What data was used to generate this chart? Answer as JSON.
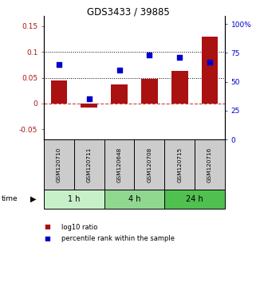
{
  "title": "GDS3433 / 39885",
  "categories": [
    "GSM120710",
    "GSM120711",
    "GSM120648",
    "GSM120708",
    "GSM120715",
    "GSM120716"
  ],
  "log10_ratio": [
    0.045,
    -0.008,
    0.037,
    0.047,
    0.063,
    0.13
  ],
  "percentile_rank": [
    65,
    35,
    60,
    73,
    71,
    67
  ],
  "groups": [
    {
      "label": "1 h",
      "indices": [
        0,
        1
      ],
      "color": "#c8f0c8"
    },
    {
      "label": "4 h",
      "indices": [
        2,
        3
      ],
      "color": "#90d890"
    },
    {
      "label": "24 h",
      "indices": [
        4,
        5
      ],
      "color": "#50c050"
    }
  ],
  "bar_color": "#aa1111",
  "dot_color": "#0000cc",
  "ylim_left": [
    -0.07,
    0.17
  ],
  "ylim_right": [
    0,
    107
  ],
  "yticks_left": [
    -0.05,
    0.0,
    0.05,
    0.1,
    0.15
  ],
  "yticks_right": [
    0,
    25,
    50,
    75,
    100
  ],
  "ytick_labels_right": [
    "0",
    "25",
    "50",
    "75",
    "100%"
  ],
  "hlines": [
    0.05,
    0.1
  ],
  "zero_line_color": "#cc4444",
  "hline_color": "#000000",
  "sample_box_color": "#cccccc",
  "time_label": "time",
  "legend_items": [
    {
      "label": "log10 ratio",
      "color": "#aa1111"
    },
    {
      "label": "percentile rank within the sample",
      "color": "#0000cc"
    }
  ]
}
